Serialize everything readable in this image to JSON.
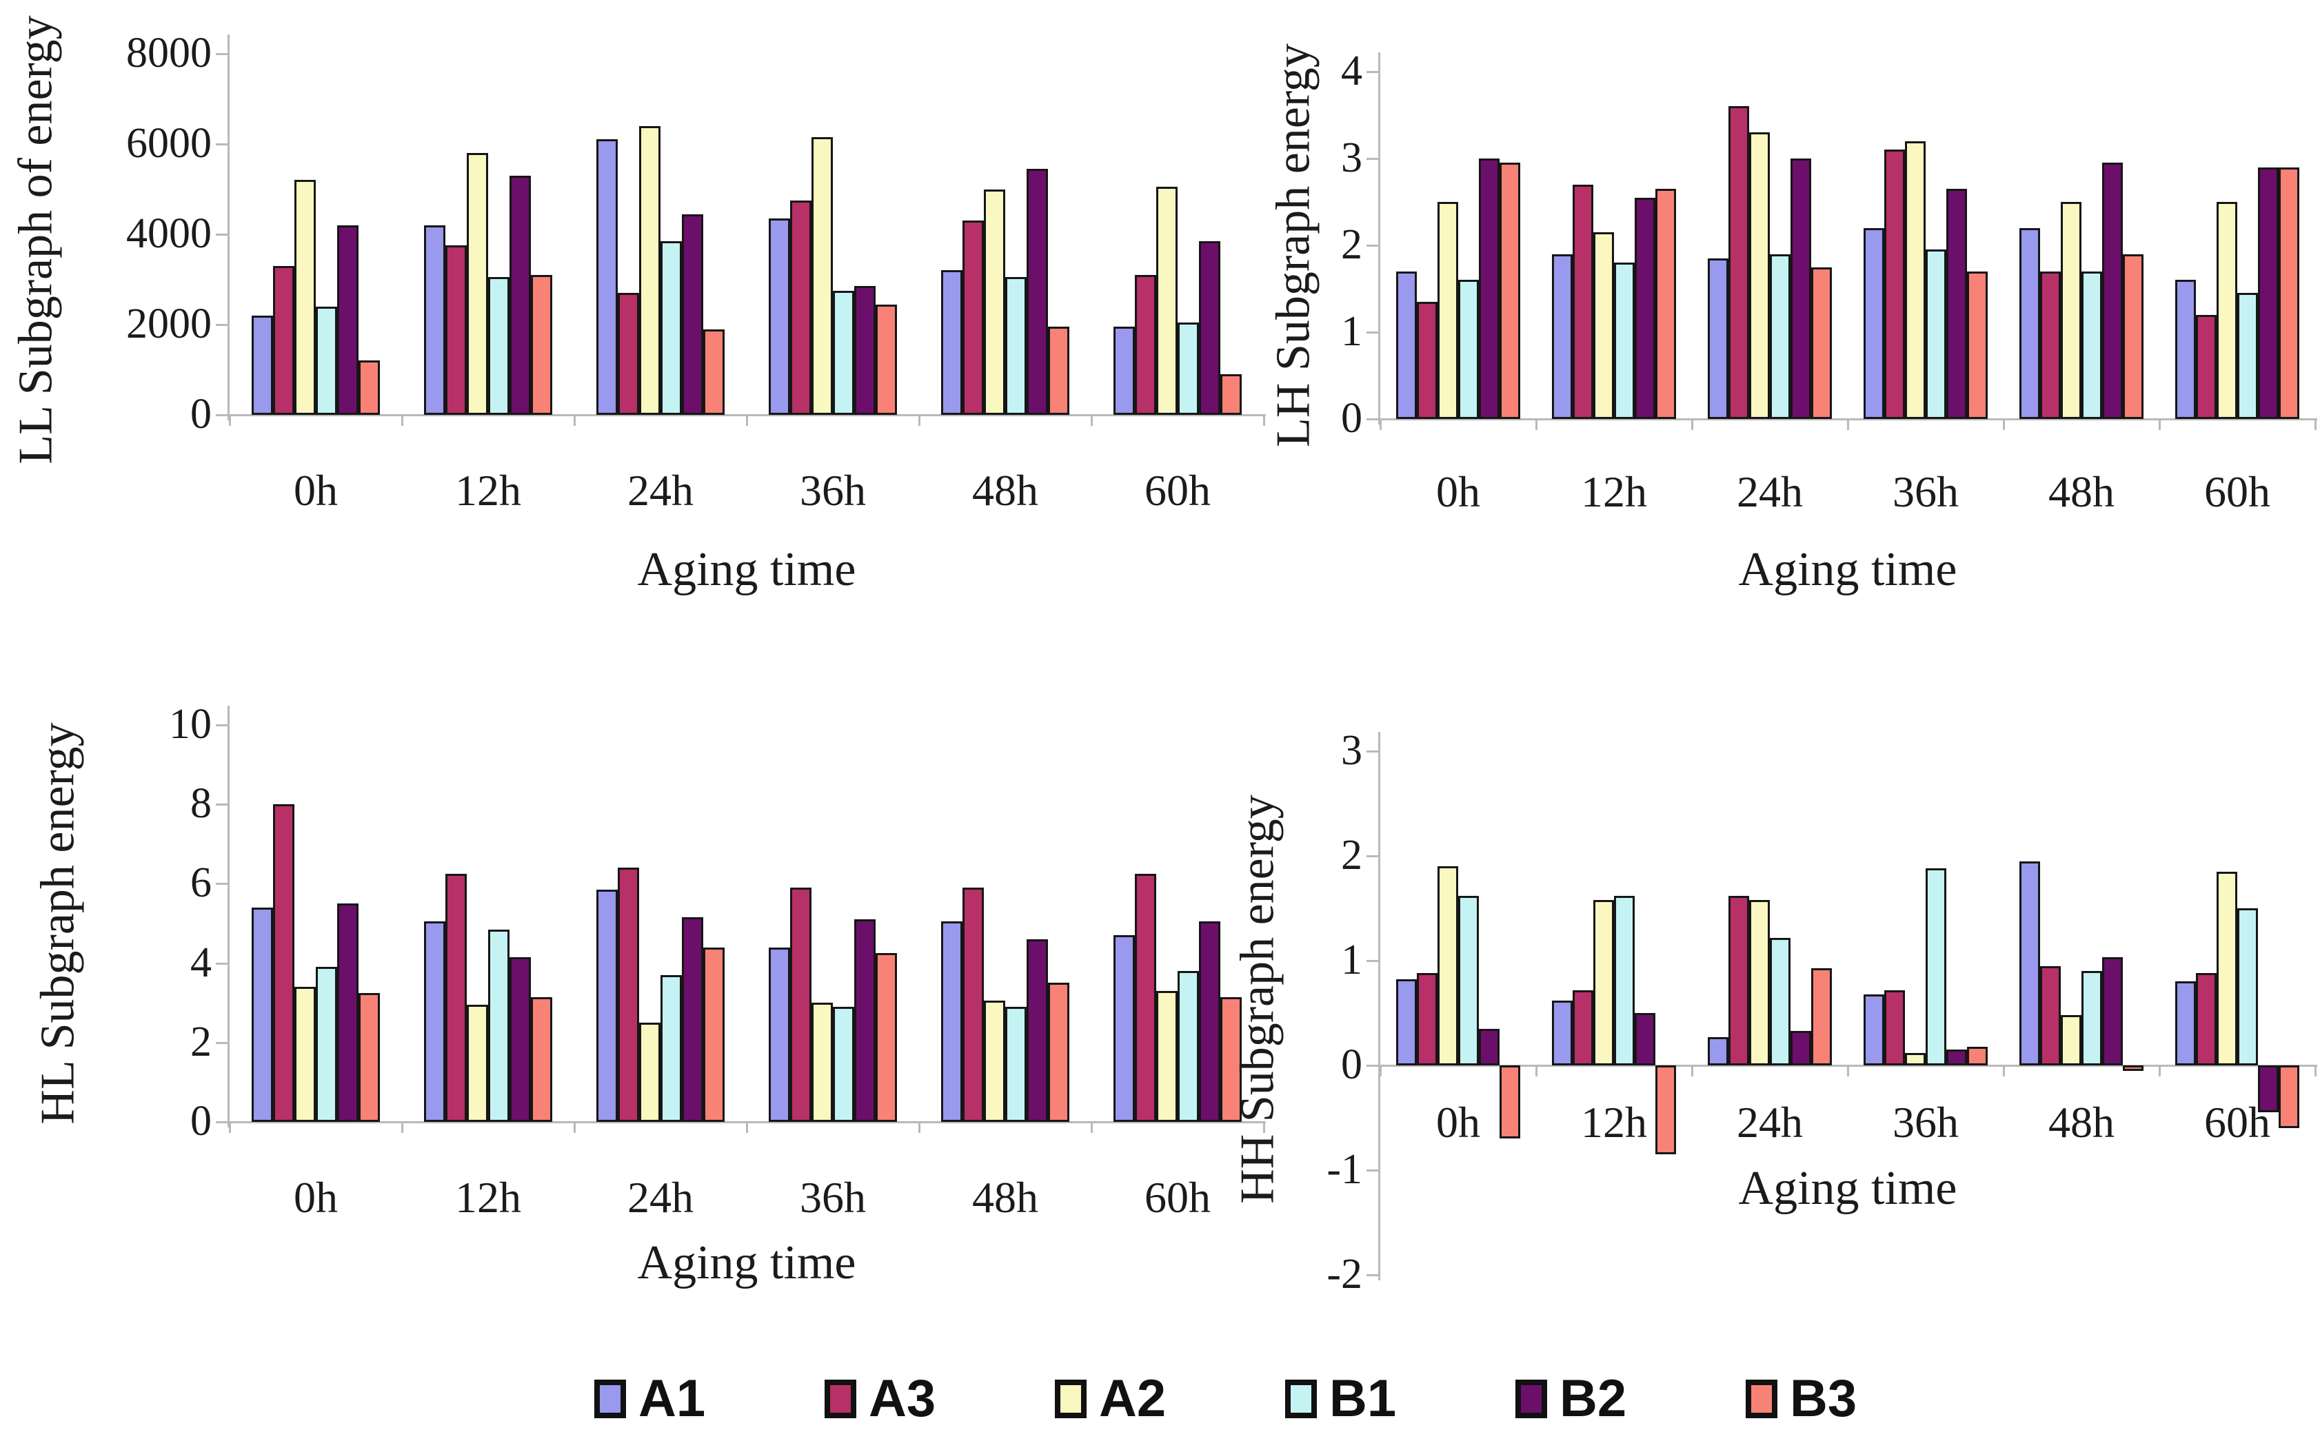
{
  "figure": {
    "description": "2x2 grid of grouped bar charts of wavelet subgraph energies versus aging time",
    "background": "#ffffff"
  },
  "legend": {
    "items": [
      {
        "label": "A1",
        "color": "#9999EE"
      },
      {
        "label": "A3",
        "color": "#B73067"
      },
      {
        "label": "A2",
        "color": "#FAF7C0"
      },
      {
        "label": "B1",
        "color": "#C5F3F3"
      },
      {
        "label": "B2",
        "color": "#6B0F6B"
      },
      {
        "label": "B3",
        "color": "#F98276"
      }
    ]
  },
  "chart_data": [
    {
      "type": "bar",
      "ylabel": "LL Subgraph of energy",
      "xlabel": "Aging time",
      "ylim": [
        0,
        8000
      ],
      "yticks": [
        0,
        2000,
        4000,
        6000,
        8000
      ],
      "grid": false,
      "categories": [
        "0h",
        "12h",
        "24h",
        "36h",
        "48h",
        "60h"
      ],
      "series": [
        {
          "name": "A1",
          "values": [
            2200,
            4200,
            6100,
            4350,
            3200,
            1950
          ]
        },
        {
          "name": "A3",
          "values": [
            3300,
            3750,
            2700,
            4750,
            4300,
            3100
          ]
        },
        {
          "name": "A2",
          "values": [
            5200,
            5800,
            6400,
            6150,
            5000,
            5050
          ]
        },
        {
          "name": "B1",
          "values": [
            2400,
            3050,
            3850,
            2750,
            3050,
            2050
          ]
        },
        {
          "name": "B2",
          "values": [
            4200,
            5300,
            4450,
            2850,
            5450,
            3850
          ]
        },
        {
          "name": "B3",
          "values": [
            1200,
            3100,
            1900,
            2450,
            1950,
            900
          ]
        }
      ]
    },
    {
      "type": "bar",
      "ylabel": "LH Subgraph energy",
      "xlabel": "Aging time",
      "ylim": [
        0,
        4
      ],
      "yticks": [
        0,
        1,
        2,
        3,
        4
      ],
      "grid": false,
      "categories": [
        "0h",
        "12h",
        "24h",
        "36h",
        "48h",
        "60h"
      ],
      "series": [
        {
          "name": "A1",
          "values": [
            1.7,
            1.9,
            1.85,
            2.2,
            2.2,
            1.6
          ]
        },
        {
          "name": "A3",
          "values": [
            1.35,
            2.7,
            3.6,
            3.1,
            1.7,
            1.2
          ]
        },
        {
          "name": "A2",
          "values": [
            2.5,
            2.15,
            3.3,
            3.2,
            2.5,
            2.5
          ]
        },
        {
          "name": "B1",
          "values": [
            1.6,
            1.8,
            1.9,
            1.95,
            1.7,
            1.45
          ]
        },
        {
          "name": "B2",
          "values": [
            3.0,
            2.55,
            3.0,
            2.65,
            2.95,
            2.9
          ]
        },
        {
          "name": "B3",
          "values": [
            2.95,
            2.65,
            1.75,
            1.7,
            1.9,
            2.9
          ]
        }
      ]
    },
    {
      "type": "bar",
      "ylabel": "HL Subgraph energy",
      "xlabel": "Aging time",
      "ylim": [
        0,
        10
      ],
      "yticks": [
        0,
        2,
        4,
        6,
        8,
        10
      ],
      "grid": false,
      "categories": [
        "0h",
        "12h",
        "24h",
        "36h",
        "48h",
        "60h"
      ],
      "series": [
        {
          "name": "A1",
          "values": [
            5.4,
            5.05,
            5.85,
            4.4,
            5.05,
            4.7
          ]
        },
        {
          "name": "A3",
          "values": [
            8.0,
            6.25,
            6.4,
            5.9,
            5.9,
            6.25
          ]
        },
        {
          "name": "A2",
          "values": [
            3.4,
            2.95,
            2.5,
            3.0,
            3.05,
            3.3
          ]
        },
        {
          "name": "B1",
          "values": [
            3.9,
            4.85,
            3.7,
            2.9,
            2.9,
            3.8
          ]
        },
        {
          "name": "B2",
          "values": [
            5.5,
            4.15,
            5.15,
            5.1,
            4.6,
            5.05
          ]
        },
        {
          "name": "B3",
          "values": [
            3.25,
            3.15,
            4.4,
            4.25,
            3.5,
            3.15
          ]
        }
      ]
    },
    {
      "type": "bar",
      "ylabel": "HH Subgraph energy",
      "xlabel": "Aging time",
      "ylim": [
        -2,
        3
      ],
      "yticks": [
        3,
        2,
        1,
        0,
        -1,
        -2
      ],
      "grid": false,
      "categories": [
        "0h",
        "12h",
        "24h",
        "36h",
        "48h",
        "60h"
      ],
      "series": [
        {
          "name": "A1",
          "values": [
            0.82,
            0.62,
            0.27,
            0.68,
            1.95,
            0.8
          ]
        },
        {
          "name": "A3",
          "values": [
            0.88,
            0.72,
            1.62,
            0.72,
            0.95,
            0.88
          ]
        },
        {
          "name": "A2",
          "values": [
            1.9,
            1.58,
            1.58,
            0.12,
            0.48,
            1.85
          ]
        },
        {
          "name": "B1",
          "values": [
            1.62,
            1.62,
            1.22,
            1.88,
            0.9,
            1.5
          ]
        },
        {
          "name": "B2",
          "values": [
            0.35,
            0.5,
            0.33,
            0.15,
            1.03,
            -0.45
          ]
        },
        {
          "name": "B3",
          "values": [
            -0.7,
            -0.85,
            0.93,
            0.18,
            -0.05,
            -0.6
          ]
        }
      ]
    }
  ]
}
